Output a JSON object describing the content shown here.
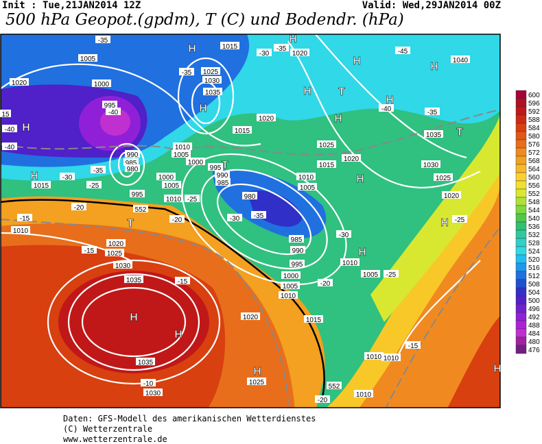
{
  "header": {
    "init": "Init : Tue,21JAN2014 12Z",
    "valid": "Valid: Wed,29JAN2014 00Z",
    "title": "500 hPa Geopot.(gpdm), T (C) und Bodendr. (hPa)"
  },
  "footer": [
    "Daten: GFS-Modell des amerikanischen Wetterdienstes",
    "(C) Wetterzentrale",
    "www.wetterzentrale.de"
  ],
  "colorbar": {
    "labels": [
      600,
      596,
      592,
      588,
      584,
      580,
      576,
      572,
      568,
      564,
      560,
      556,
      552,
      548,
      544,
      540,
      536,
      532,
      528,
      524,
      520,
      516,
      512,
      508,
      504,
      500,
      496,
      492,
      488,
      484,
      480,
      476
    ],
    "colors": [
      "#a8003c",
      "#b01020",
      "#c01818",
      "#cc2a14",
      "#d84010",
      "#e05818",
      "#e86e1c",
      "#f08a20",
      "#f4a020",
      "#f8b828",
      "#fcd030",
      "#f0e030",
      "#d8e830",
      "#b0e038",
      "#80d840",
      "#50c848",
      "#30c070",
      "#30c8a0",
      "#30d0c8",
      "#30d8e8",
      "#20c0f0",
      "#2098f0",
      "#2070e0",
      "#2050d0",
      "#3030c8",
      "#5020c8",
      "#7020d0",
      "#9020d8",
      "#b020d8",
      "#c030d0",
      "#a020a0",
      "#702080"
    ]
  },
  "map": {
    "labels": [
      "1015",
      "1020",
      "-35",
      "-30",
      "-35",
      "1005",
      "1025",
      "1030",
      "1035",
      "-35",
      "1000",
      "1020",
      "995",
      "-40",
      "1020",
      "1015",
      "990",
      "985",
      "980",
      "1010",
      "1005",
      "1000",
      "995",
      "990",
      "985",
      "1000",
      "1005",
      "1010",
      "995",
      "-25",
      "-20",
      "980",
      "-35",
      "-30",
      "985",
      "990",
      "995",
      "1000",
      "1005",
      "1010",
      "1030",
      "1035",
      "-15",
      "1035",
      "-10",
      "1030",
      "1020",
      "1025",
      "1015",
      "1025",
      "1030",
      "1035",
      "1040",
      "-45",
      "-40",
      "-35",
      "1020",
      "1015",
      "1010",
      "1005",
      "-30",
      "1010",
      "1005",
      "-25",
      "-20",
      "-15",
      "1010",
      "1010",
      "1010",
      "-20",
      "1025",
      "1020",
      "-25",
      "1010",
      "1015",
      "-15",
      "1020",
      "1025",
      "-20",
      "-15",
      "-40",
      "-40",
      "15",
      "-30",
      "-35",
      "-25",
      "552",
      "552"
    ],
    "centers": [
      "H",
      "H",
      "H",
      "H",
      "H",
      "H",
      "H",
      "H",
      "H",
      "H",
      "H",
      "H",
      "H",
      "H",
      "H",
      "H",
      "H",
      "T",
      "T",
      "T",
      "T"
    ]
  }
}
